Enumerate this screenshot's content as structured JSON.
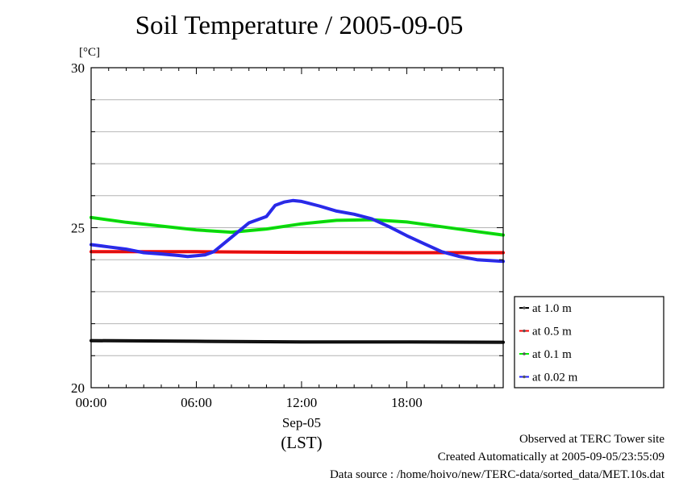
{
  "chart_data": {
    "type": "line",
    "title": "Soil Temperature / 2005-09-05",
    "unit_label": "[°C]",
    "ylim": [
      20,
      30
    ],
    "y_ticks": [
      {
        "value": 20,
        "label": "20"
      },
      {
        "value": 25,
        "label": "25"
      },
      {
        "value": 30,
        "label": "30"
      }
    ],
    "y_grid_step": 1,
    "xlim": [
      0,
      23.5
    ],
    "x_ticks": [
      {
        "value": 0,
        "label": "00:00"
      },
      {
        "value": 6,
        "label": "06:00"
      },
      {
        "value": 12,
        "label": "12:00"
      },
      {
        "value": 18,
        "label": "18:00"
      }
    ],
    "x_date_label": "Sep-05",
    "x_zone_label": "(LST)",
    "grid": true,
    "legend_position": "right",
    "series": [
      {
        "name": "at 1.0 m",
        "color": "#000000",
        "x": [
          0,
          6,
          12,
          18,
          23.5
        ],
        "y": [
          21.47,
          21.45,
          21.43,
          21.43,
          21.42
        ]
      },
      {
        "name": "at 0.5 m",
        "color": "#ff0000",
        "x": [
          0,
          6,
          12,
          18,
          23.5
        ],
        "y": [
          24.25,
          24.25,
          24.23,
          24.22,
          24.22
        ]
      },
      {
        "name": "at 0.1 m",
        "color": "#00ee00",
        "x": [
          0,
          2,
          4,
          6,
          8,
          10,
          12,
          14,
          16,
          18,
          20,
          22,
          23.5
        ],
        "y": [
          25.32,
          25.17,
          25.05,
          24.93,
          24.86,
          24.96,
          25.12,
          25.23,
          25.25,
          25.18,
          25.03,
          24.88,
          24.77
        ]
      },
      {
        "name": "at 0.02 m",
        "color": "#2222ff",
        "x": [
          0,
          1,
          2,
          3,
          4,
          5,
          5.5,
          6.5,
          7,
          8,
          9,
          10,
          10.5,
          11,
          11.5,
          12,
          13,
          14,
          15,
          16,
          17,
          18,
          19,
          20,
          21,
          22,
          23.5
        ],
        "y": [
          24.47,
          24.4,
          24.33,
          24.22,
          24.18,
          24.13,
          24.1,
          24.15,
          24.25,
          24.7,
          25.15,
          25.35,
          25.7,
          25.8,
          25.85,
          25.82,
          25.68,
          25.52,
          25.42,
          25.28,
          25.03,
          24.75,
          24.5,
          24.25,
          24.1,
          24.0,
          23.95
        ]
      }
    ]
  },
  "footer": [
    "Observed at TERC Tower site",
    "Created Automatically at 2005-09-05/23:55:09",
    "Data source : /home/hoivo/new/TERC-data/sorted_data/MET.10s.dat"
  ]
}
